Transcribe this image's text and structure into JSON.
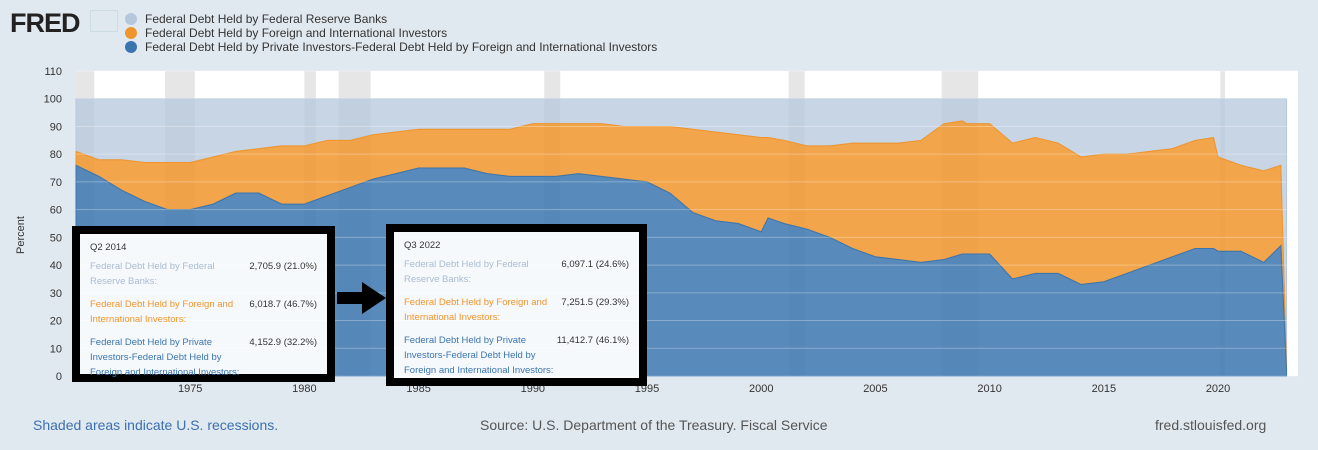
{
  "logo": "FRED",
  "legend": [
    {
      "label": "Federal Debt Held by Federal Reserve Banks",
      "color": "#b5c7dc"
    },
    {
      "label": "Federal Debt Held by Foreign and International Investors",
      "color": "#f0952c"
    },
    {
      "label": "Federal Debt Held by Private Investors-Federal Debt Held by Foreign and International Investors",
      "color": "#3b75af"
    }
  ],
  "chart_data": {
    "type": "area",
    "stacked": "percent",
    "ylabel": "Percent",
    "ylim": [
      0,
      110
    ],
    "yticks": [
      0,
      10,
      20,
      30,
      40,
      50,
      60,
      70,
      80,
      90,
      100,
      110
    ],
    "xlim": [
      1970,
      2023.5
    ],
    "xticks": [
      1975,
      1980,
      1985,
      1990,
      1995,
      2000,
      2005,
      2010,
      2015,
      2020
    ],
    "x": [
      1970,
      1971,
      1972,
      1973,
      1974,
      1975,
      1976,
      1977,
      1978,
      1979,
      1980,
      1981,
      1982,
      1983,
      1984,
      1985,
      1986,
      1987,
      1988,
      1989,
      1990,
      1991,
      1992,
      1993,
      1994,
      1995,
      1996,
      1997,
      1998,
      1999,
      2000,
      2000.3,
      2001,
      2002,
      2003,
      2004,
      2005,
      2006,
      2007,
      2008,
      2008.8,
      2009,
      2010,
      2011,
      2012,
      2013,
      2014,
      2015,
      2016,
      2017,
      2018,
      2019,
      2019.8,
      2020,
      2021,
      2022,
      2022.75,
      2023
    ],
    "series": [
      {
        "name": "Federal Debt Held by Private Investors-Federal Debt Held by Foreign and International Investors",
        "values": [
          76,
          72,
          67,
          63,
          60,
          60,
          62,
          66,
          66,
          62,
          62,
          65,
          68,
          71,
          73,
          75,
          75,
          75,
          73,
          72,
          72,
          72,
          73,
          72,
          71,
          70,
          66,
          59,
          56,
          55,
          52,
          57,
          55,
          53,
          50,
          46,
          43,
          42,
          41,
          42,
          44,
          44,
          44,
          35,
          37,
          37,
          33,
          34,
          37,
          40,
          43,
          46,
          46,
          45,
          45,
          41,
          47,
          2
        ]
      },
      {
        "name": "Federal Debt Held by Foreign and International Investors",
        "values": [
          5,
          6,
          11,
          14,
          17,
          17,
          17,
          15,
          16,
          21,
          21,
          20,
          17,
          16,
          15,
          14,
          14,
          14,
          16,
          17,
          19,
          19,
          18,
          19,
          19,
          20,
          24,
          30,
          32,
          32,
          34,
          29,
          30,
          30,
          33,
          38,
          41,
          42,
          44,
          49,
          48,
          47,
          47,
          49,
          49,
          47,
          46,
          46,
          43,
          41,
          39,
          39,
          40,
          34,
          31,
          33,
          29,
          0
        ]
      },
      {
        "name": "Federal Debt Held by Federal Reserve Banks",
        "values": [
          19,
          22,
          22,
          23,
          23,
          23,
          21,
          19,
          18,
          17,
          17,
          15,
          15,
          13,
          12,
          11,
          11,
          11,
          11,
          11,
          9,
          9,
          9,
          9,
          10,
          10,
          10,
          11,
          12,
          13,
          14,
          14,
          15,
          17,
          17,
          16,
          16,
          16,
          15,
          9,
          8,
          9,
          9,
          16,
          14,
          16,
          21,
          20,
          20,
          19,
          18,
          15,
          14,
          21,
          24,
          26,
          24,
          98
        ]
      }
    ],
    "recessions": [
      [
        1969.9,
        1970.8
      ],
      [
        1973.9,
        1975.2
      ],
      [
        1980,
        1980.5
      ],
      [
        1981.5,
        1982.9
      ],
      [
        1990.5,
        1991.2
      ],
      [
        2001.2,
        2001.9
      ],
      [
        2007.9,
        2009.5
      ],
      [
        2020.1,
        2020.3
      ]
    ]
  },
  "tooltips": [
    {
      "title": "Q2 2014",
      "rows": [
        {
          "label": "Federal Debt Held by Federal Reserve Banks:",
          "value": "2,705.9 (21.0%)"
        },
        {
          "label": "Federal Debt Held by Foreign and International Investors:",
          "value": "6,018.7 (46.7%)"
        },
        {
          "label": "Federal Debt Held by Private Investors-Federal Debt Held by Foreign and International Investors:",
          "value": "4,152.9 (32.2%)"
        }
      ]
    },
    {
      "title": "Q3 2022",
      "rows": [
        {
          "label": "Federal Debt Held by Federal Reserve Banks:",
          "value": "6,097.1 (24.6%)"
        },
        {
          "label": "Federal Debt Held by Foreign and International Investors:",
          "value": "7,251.5 (29.3%)"
        },
        {
          "label": "Federal Debt Held by Private Investors-Federal Debt Held by Foreign and International Investors:",
          "value": "11,412.7 (46.1%)"
        }
      ]
    }
  ],
  "footer": {
    "recessions": "Shaded areas indicate U.S. recessions.",
    "source": "Source: U.S. Department of the Treasury. Fiscal Service",
    "site": "fred.stlouisfed.org"
  }
}
